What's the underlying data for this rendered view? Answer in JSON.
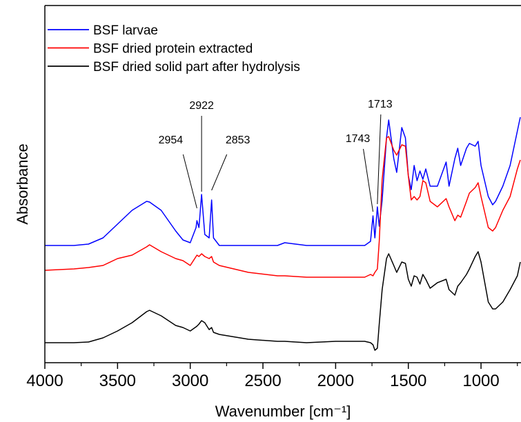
{
  "chart_data": {
    "type": "line",
    "x_label": "Wavenumber [cm⁻¹]",
    "y_label": "Absorbance",
    "xlim": [
      4000,
      725
    ],
    "ylim": [
      0,
      518
    ],
    "xticks": [
      4000,
      3500,
      3000,
      2500,
      2000,
      1500,
      1000
    ],
    "xminorticks": [
      3750,
      3250,
      2750,
      2250,
      1750,
      1250,
      750
    ],
    "legend": "upper left",
    "x": [
      4000,
      3800,
      3700,
      3600,
      3500,
      3400,
      3300,
      3280,
      3200,
      3100,
      3050,
      3000,
      2960,
      2954,
      2940,
      2922,
      2900,
      2870,
      2853,
      2840,
      2800,
      2600,
      2400,
      2350,
      2200,
      2000,
      1800,
      1760,
      1743,
      1730,
      1713,
      1700,
      1680,
      1650,
      1635,
      1600,
      1580,
      1545,
      1520,
      1500,
      1480,
      1460,
      1440,
      1420,
      1400,
      1380,
      1350,
      1300,
      1240,
      1220,
      1180,
      1160,
      1140,
      1100,
      1080,
      1040,
      1020,
      1000,
      950,
      920,
      900,
      850,
      800,
      750,
      730
    ],
    "series": [
      {
        "name": "BSF larvae",
        "color": "#0000ff",
        "values": [
          170,
          170,
          172,
          181,
          201,
          221,
          234,
          233,
          221,
          191,
          178,
          174,
          196,
          206,
          196,
          244,
          186,
          181,
          236,
          181,
          170,
          170,
          170,
          174,
          170,
          170,
          170,
          176,
          213,
          181,
          226,
          198,
          236,
          326,
          352,
          296,
          276,
          341,
          326,
          271,
          251,
          286,
          264,
          278,
          266,
          281,
          256,
          256,
          291,
          256,
          296,
          311,
          286,
          311,
          318,
          314,
          321,
          286,
          241,
          229,
          234,
          256,
          286,
          336,
          356
        ]
      },
      {
        "name": "BSF dried protein extracted",
        "color": "#ff0000",
        "values": [
          134,
          136,
          138,
          141,
          151,
          156,
          168,
          171,
          161,
          151,
          148,
          141,
          154,
          156,
          154,
          158,
          154,
          151,
          154,
          146,
          141,
          131,
          126,
          126,
          124,
          124,
          124,
          128,
          126,
          131,
          136,
          176,
          266,
          326,
          328,
          308,
          301,
          316,
          314,
          271,
          236,
          241,
          236,
          241,
          264,
          261,
          234,
          226,
          238,
          226,
          206,
          214,
          211,
          234,
          246,
          254,
          261,
          241,
          196,
          191,
          196,
          221,
          241,
          281,
          294
        ]
      },
      {
        "name": "BSF dried solid part after hydrolysis",
        "color": "#000000",
        "values": [
          29,
          29,
          30,
          36,
          46,
          58,
          74,
          76,
          68,
          54,
          51,
          46,
          52,
          53,
          56,
          61,
          58,
          48,
          51,
          44,
          41,
          34,
          31,
          31,
          29,
          31,
          31,
          29,
          26,
          18,
          21,
          56,
          106,
          151,
          158,
          141,
          131,
          146,
          144,
          121,
          111,
          126,
          124,
          114,
          128,
          121,
          108,
          116,
          121,
          106,
          98,
          111,
          116,
          128,
          136,
          154,
          161,
          146,
          88,
          78,
          78,
          88,
          106,
          126,
          146
        ]
      }
    ],
    "annotations": [
      2954,
      2922,
      2853,
      1743,
      1713
    ]
  }
}
